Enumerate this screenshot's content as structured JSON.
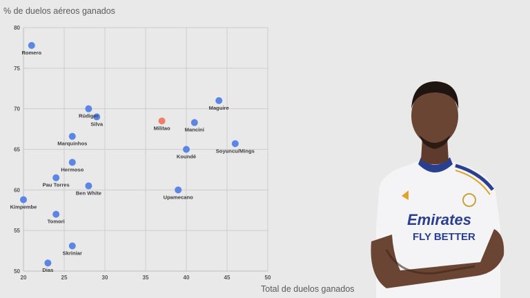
{
  "chart_data": {
    "type": "scatter",
    "title": "",
    "ylabel": "% de duelos aéreos ganados",
    "xlabel": "Total de duelos ganados",
    "xlim": [
      20,
      50
    ],
    "ylim": [
      50,
      80
    ],
    "xticks": [
      20,
      25,
      30,
      35,
      40,
      45,
      50
    ],
    "yticks": [
      50,
      55,
      60,
      65,
      70,
      75,
      80
    ],
    "grid": true,
    "colors": {
      "default": "#5b86e6",
      "highlight": "#f07c6c"
    },
    "points": [
      {
        "name": "Romero",
        "x": 21,
        "y": 77.8,
        "highlight": false,
        "label_pos": "below"
      },
      {
        "name": "Rüdiger",
        "x": 28,
        "y": 70.0,
        "highlight": false,
        "label_pos": "below"
      },
      {
        "name": "Silva",
        "x": 29,
        "y": 69.0,
        "highlight": false,
        "label_pos": "below"
      },
      {
        "name": "Militao",
        "x": 37,
        "y": 68.5,
        "highlight": true,
        "label_pos": "below"
      },
      {
        "name": "Maguire",
        "x": 44,
        "y": 71.0,
        "highlight": false,
        "label_pos": "below"
      },
      {
        "name": "Mancini",
        "x": 41,
        "y": 68.3,
        "highlight": false,
        "label_pos": "below"
      },
      {
        "name": "Marquinhos",
        "x": 26,
        "y": 66.6,
        "highlight": false,
        "label_pos": "below"
      },
      {
        "name": "Soyuncu/Mings",
        "x": 46,
        "y": 65.7,
        "highlight": false,
        "label_pos": "below"
      },
      {
        "name": "Koundé",
        "x": 40,
        "y": 65.0,
        "highlight": false,
        "label_pos": "below"
      },
      {
        "name": "Hermoso",
        "x": 26,
        "y": 63.4,
        "highlight": false,
        "label_pos": "below"
      },
      {
        "name": "Pau Torres",
        "x": 24,
        "y": 61.5,
        "highlight": false,
        "label_pos": "below"
      },
      {
        "name": "Ben White",
        "x": 28,
        "y": 60.5,
        "highlight": false,
        "label_pos": "below"
      },
      {
        "name": "Upamecano",
        "x": 39,
        "y": 60.0,
        "highlight": false,
        "label_pos": "below"
      },
      {
        "name": "Kimpembe",
        "x": 20,
        "y": 58.8,
        "highlight": false,
        "label_pos": "below"
      },
      {
        "name": "Tomori",
        "x": 24,
        "y": 57.0,
        "highlight": false,
        "label_pos": "below"
      },
      {
        "name": "Skriniar",
        "x": 26,
        "y": 53.1,
        "highlight": false,
        "label_pos": "below"
      },
      {
        "name": "Dias",
        "x": 23,
        "y": 51.0,
        "highlight": false,
        "label_pos": "below"
      }
    ]
  },
  "player_image": {
    "icon": "player-photo-icon",
    "jersey_line_1": "Emirates",
    "jersey_line_2": "FLY BETTER",
    "colors": {
      "jersey": "#f4f4f6",
      "trim": "#2a3f8f",
      "gold": "#e0a32a",
      "skin": "#6b4533"
    }
  }
}
